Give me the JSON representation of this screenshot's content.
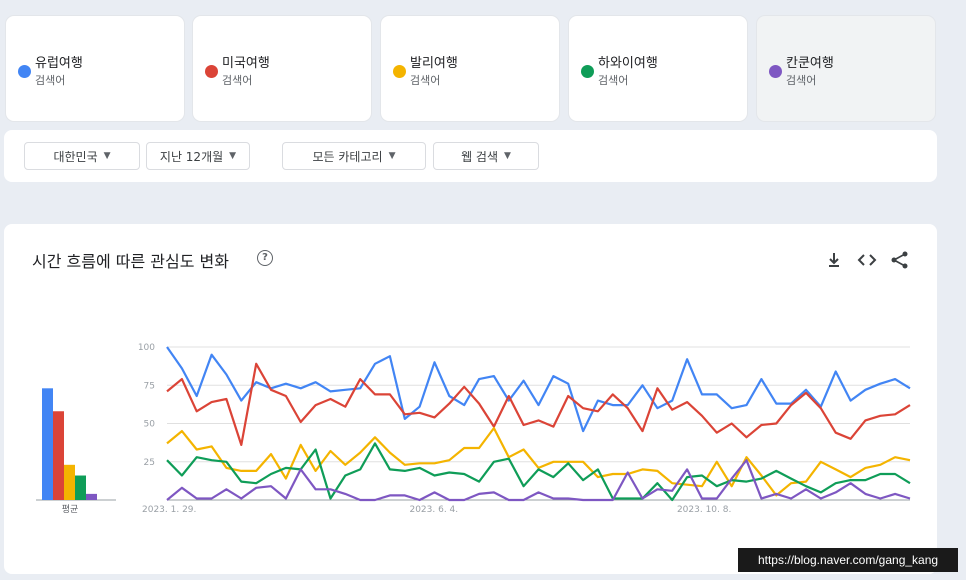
{
  "terms": [
    {
      "name": "유럽여행",
      "sub": "검색어",
      "color": "#4285f4",
      "selected": false
    },
    {
      "name": "미국여행",
      "sub": "검색어",
      "color": "#db4437",
      "selected": false
    },
    {
      "name": "발리여행",
      "sub": "검색어",
      "color": "#f4b400",
      "selected": false
    },
    {
      "name": "하와이여행",
      "sub": "검색어",
      "color": "#0f9d58",
      "selected": false
    },
    {
      "name": "칸쿤여행",
      "sub": "검색어",
      "color": "#7e57c2",
      "selected": true
    }
  ],
  "filters": [
    {
      "label": "대한민국"
    },
    {
      "label": "지난 12개월"
    },
    {
      "label": "모든 카테고리"
    },
    {
      "label": "웹 검색"
    }
  ],
  "chart_section": {
    "title": "시간 흐름에 따른 관심도 변화",
    "help_icon": "help-circle-icon",
    "tools": [
      "download-icon",
      "embed-code-icon",
      "share-icon"
    ]
  },
  "watermark": "https://blog.naver.com/gang_kang",
  "chart_data": [
    {
      "type": "bar",
      "title": "",
      "categories": [
        "평균"
      ],
      "series": [
        {
          "name": "유럽여행",
          "values": [
            73
          ],
          "color": "#4285f4"
        },
        {
          "name": "미국여행",
          "values": [
            58
          ],
          "color": "#db4437"
        },
        {
          "name": "발리여행",
          "values": [
            23
          ],
          "color": "#f4b400"
        },
        {
          "name": "하와이여행",
          "values": [
            16
          ],
          "color": "#0f9d58"
        },
        {
          "name": "칸쿤여행",
          "values": [
            4
          ],
          "color": "#7e57c2"
        }
      ],
      "ylim": [
        0,
        100
      ]
    },
    {
      "type": "line",
      "title": "",
      "xlabel": "",
      "ylabel": "",
      "ylim": [
        0,
        100
      ],
      "yticks": [
        25,
        50,
        75,
        100
      ],
      "xtick_labels": [
        {
          "label": "2023. 1. 29.",
          "index": 0
        },
        {
          "label": "2023. 6. 4.",
          "index": 18
        },
        {
          "label": "2023. 10. 8.",
          "index": 36
        }
      ],
      "grid": true,
      "series": [
        {
          "name": "유럽여행",
          "color": "#4285f4",
          "values": [
            100,
            86,
            68,
            95,
            82,
            65,
            77,
            73,
            76,
            73,
            77,
            71,
            72,
            73,
            89,
            94,
            53,
            61,
            90,
            68,
            62,
            79,
            81,
            65,
            78,
            62,
            81,
            76,
            45,
            65,
            62,
            62,
            75,
            60,
            65,
            92,
            69,
            69,
            60,
            62,
            79,
            63,
            63,
            72,
            61,
            84,
            65,
            72,
            76,
            79,
            73
          ]
        },
        {
          "name": "미국여행",
          "color": "#db4437",
          "values": [
            71,
            79,
            58,
            64,
            66,
            36,
            89,
            72,
            68,
            51,
            62,
            66,
            61,
            79,
            69,
            69,
            56,
            57,
            54,
            63,
            74,
            63,
            48,
            68,
            49,
            52,
            48,
            68,
            60,
            58,
            69,
            60,
            45,
            73,
            59,
            64,
            55,
            44,
            50,
            41,
            49,
            50,
            62,
            70,
            60,
            44,
            40,
            52,
            55,
            56,
            62
          ]
        },
        {
          "name": "발리여행",
          "color": "#f4b400",
          "values": [
            37,
            45,
            33,
            35,
            21,
            19,
            19,
            30,
            14,
            36,
            19,
            32,
            23,
            31,
            41,
            31,
            23,
            24,
            24,
            26,
            34,
            34,
            47,
            28,
            33,
            21,
            25,
            25,
            25,
            15,
            17,
            17,
            20,
            19,
            11,
            10,
            9,
            25,
            9,
            28,
            16,
            3,
            11,
            12,
            25,
            20,
            15,
            21,
            23,
            28,
            26
          ]
        },
        {
          "name": "하와이여행",
          "color": "#0f9d58",
          "values": [
            26,
            16,
            28,
            26,
            25,
            12,
            11,
            17,
            21,
            20,
            33,
            1,
            16,
            20,
            37,
            20,
            19,
            21,
            16,
            18,
            17,
            12,
            25,
            27,
            9,
            20,
            15,
            24,
            13,
            20,
            1,
            1,
            1,
            11,
            0,
            15,
            16,
            9,
            13,
            12,
            14,
            19,
            14,
            9,
            5,
            11,
            13,
            13,
            17,
            17,
            11
          ]
        },
        {
          "name": "칸쿤여행",
          "color": "#7e57c2",
          "values": [
            0,
            8,
            1,
            1,
            7,
            1,
            8,
            9,
            1,
            20,
            7,
            7,
            4,
            0,
            0,
            3,
            3,
            0,
            5,
            0,
            0,
            4,
            5,
            0,
            0,
            5,
            1,
            1,
            0,
            0,
            0,
            18,
            1,
            7,
            6,
            20,
            1,
            1,
            14,
            26,
            1,
            4,
            1,
            7,
            1,
            5,
            11,
            4,
            1,
            4,
            1
          ]
        }
      ]
    }
  ]
}
